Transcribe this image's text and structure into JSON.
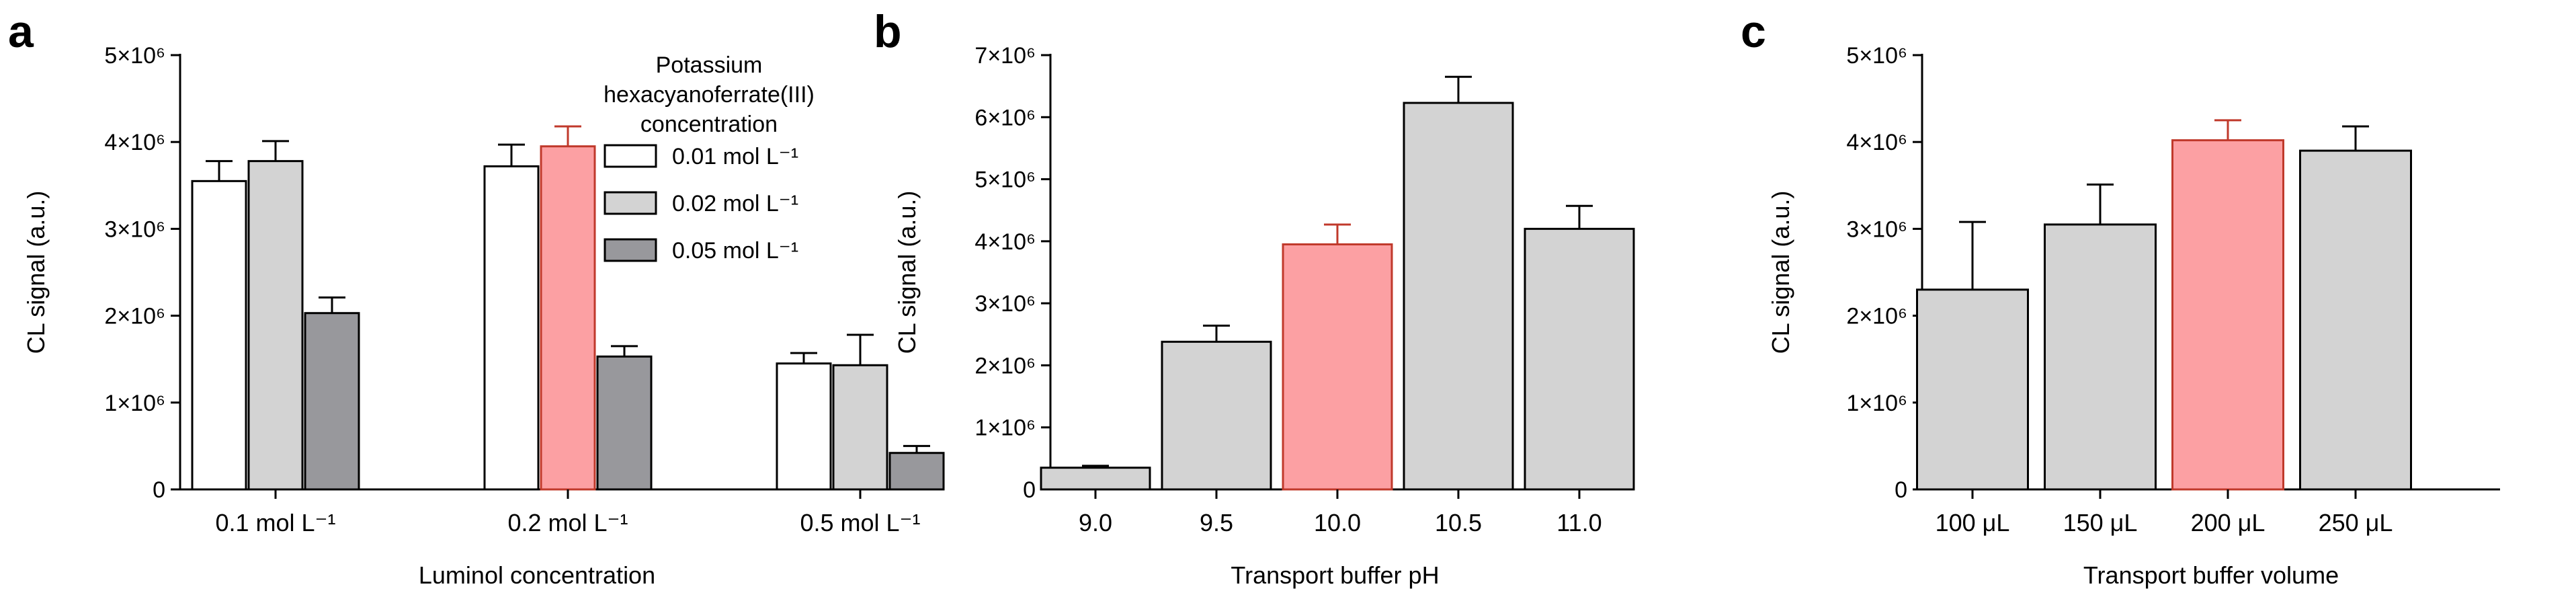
{
  "panels": [
    {
      "letter": "a",
      "chart_data": {
        "type": "bar",
        "ylabel": "CL signal (a.u.)",
        "xlabel": "Luminol concentration",
        "ylim": [
          0,
          5000000
        ],
        "y_ticks": [
          {
            "value": 0,
            "label": "0"
          },
          {
            "value": 1000000,
            "label": "1×10⁶"
          },
          {
            "value": 2000000,
            "label": "2×10⁶"
          },
          {
            "value": 3000000,
            "label": "3×10⁶"
          },
          {
            "value": 4000000,
            "label": "4×10⁶"
          },
          {
            "value": 5000000,
            "label": "5×10⁶"
          }
        ],
        "categories": [
          "0.1 mol L⁻¹",
          "0.2 mol L⁻¹",
          "0.5 mol L⁻¹"
        ],
        "legend_title": [
          "Potassium",
          "hexacyanoferrate(III)",
          "concentration"
        ],
        "legend_position": "top-right",
        "series": [
          {
            "name": "0.01 mol L⁻¹",
            "color": "#ffffff",
            "values": [
              3550000,
              3720000,
              1450000
            ],
            "errors": [
              230000,
              250000,
              120000
            ]
          },
          {
            "name": "0.02 mol L⁻¹",
            "color": "#d3d3d3",
            "values": [
              3780000,
              3950000,
              1430000
            ],
            "errors": [
              230000,
              230000,
              350000
            ]
          },
          {
            "name": "0.05 mol L⁻¹",
            "color": "#98989c",
            "values": [
              2030000,
              1530000,
              420000
            ],
            "errors": [
              180000,
              120000,
              80000
            ]
          }
        ],
        "highlight": {
          "series": 1,
          "category": 1,
          "fill": "#fca0a3",
          "stroke": "#c0392b"
        }
      }
    },
    {
      "letter": "b",
      "chart_data": {
        "type": "bar",
        "ylabel": "CL signal (a.u.)",
        "xlabel": "Transport buffer pH",
        "ylim": [
          0,
          7000000
        ],
        "y_ticks": [
          {
            "value": 0,
            "label": "0"
          },
          {
            "value": 1000000,
            "label": "1×10⁶"
          },
          {
            "value": 2000000,
            "label": "2×10⁶"
          },
          {
            "value": 3000000,
            "label": "3×10⁶"
          },
          {
            "value": 4000000,
            "label": "4×10⁶"
          },
          {
            "value": 5000000,
            "label": "5×10⁶"
          },
          {
            "value": 6000000,
            "label": "6×10⁶"
          },
          {
            "value": 7000000,
            "label": "7×10⁶"
          }
        ],
        "categories": [
          "9.0",
          "9.5",
          "10.0",
          "10.5",
          "11.0"
        ],
        "values": [
          350000,
          2380000,
          3950000,
          6230000,
          4200000
        ],
        "errors": [
          30000,
          260000,
          320000,
          420000,
          370000
        ],
        "color": "#d3d3d3",
        "highlight": {
          "index": 2,
          "fill": "#fca0a3",
          "stroke": "#c0392b"
        }
      }
    },
    {
      "letter": "c",
      "chart_data": {
        "type": "bar",
        "ylabel": "CL signal (a.u.)",
        "xlabel": "Transport buffer volume",
        "ylim": [
          0,
          5000000
        ],
        "y_ticks": [
          {
            "value": 0,
            "label": "0"
          },
          {
            "value": 1000000,
            "label": "1×10⁶"
          },
          {
            "value": 2000000,
            "label": "2×10⁶"
          },
          {
            "value": 3000000,
            "label": "3×10⁶"
          },
          {
            "value": 4000000,
            "label": "4×10⁶"
          },
          {
            "value": 5000000,
            "label": "5×10⁶"
          }
        ],
        "categories": [
          "100 μL",
          "150 μL",
          "200 μL",
          "250 μL"
        ],
        "values": [
          2300000,
          3050000,
          4020000,
          3900000
        ],
        "errors": [
          780000,
          460000,
          230000,
          280000
        ],
        "color": "#d3d3d3",
        "highlight": {
          "index": 2,
          "fill": "#fca0a3",
          "stroke": "#c0392b"
        }
      }
    }
  ]
}
